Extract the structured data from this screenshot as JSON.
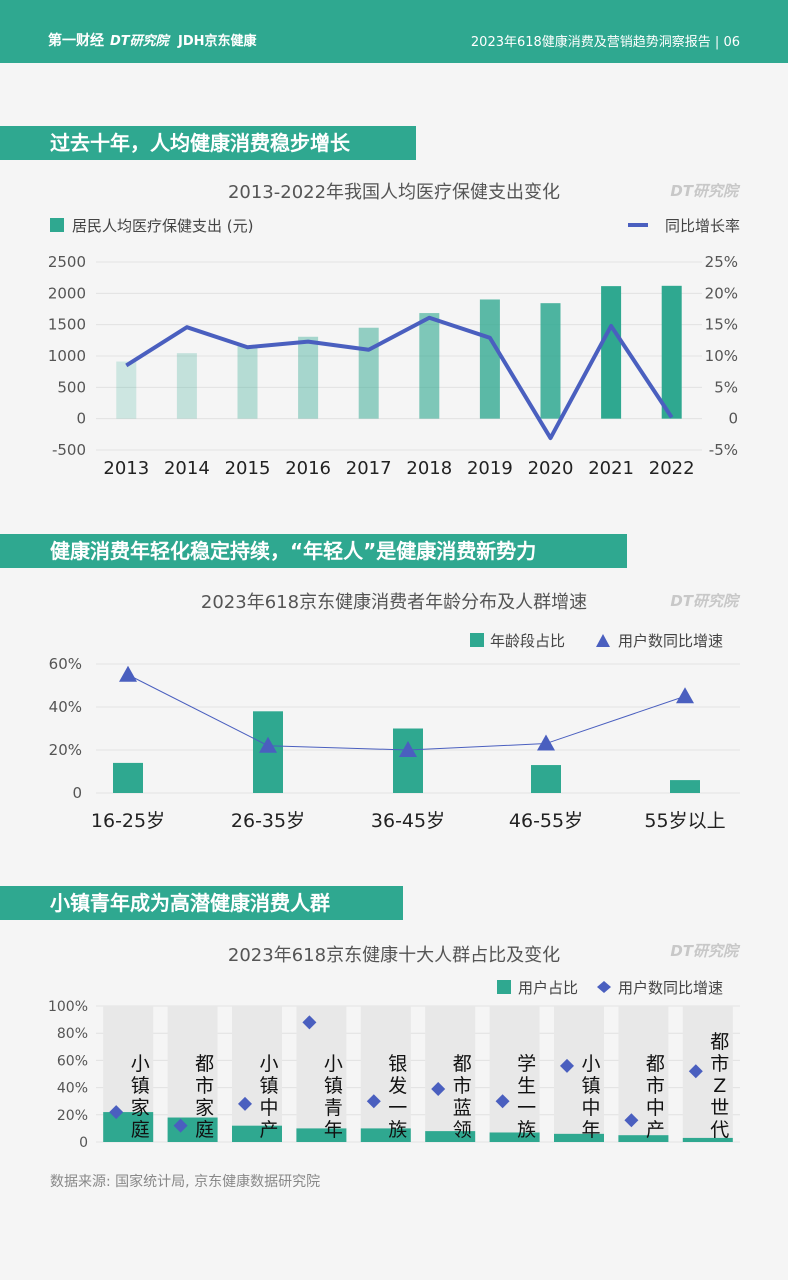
{
  "header": {
    "logos": [
      "第一财经",
      "DT研究院",
      "JDH京东健康"
    ],
    "report_title": "2023年618健康消费及营销趋势洞察报告 | 06"
  },
  "sections": [
    {
      "banner": "过去十年，人均健康消费稳步增长"
    },
    {
      "banner": "健康消费年轻化稳定持续，“年轻人”是健康消费新势力"
    },
    {
      "banner": "小镇青年成为高潜健康消费人群"
    }
  ],
  "watermark": "DT研究院",
  "source": "数据来源: 国家统计局, 京东健康数据研究院",
  "colors": {
    "teal": "#2fa890",
    "line": "#4a5fbf",
    "diamond": "#4a5fbf"
  },
  "chart_data": [
    {
      "type": "bar",
      "title": "2013-2022年我国人均医疗保健支出变化",
      "categories": [
        "2013",
        "2014",
        "2015",
        "2016",
        "2017",
        "2018",
        "2019",
        "2020",
        "2021",
        "2022"
      ],
      "series": [
        {
          "name": "居民人均医疗保健支出 (元)",
          "type": "bar",
          "axis": "left",
          "values": [
            912,
            1045,
            1165,
            1307,
            1451,
            1685,
            1902,
            1843,
            2115,
            2120
          ]
        },
        {
          "name": "同比增长率",
          "type": "line",
          "axis": "right",
          "values": [
            8.5,
            14.6,
            11.4,
            12.3,
            11.0,
            16.1,
            12.9,
            -3.1,
            14.8,
            0.2
          ]
        }
      ],
      "ylim_left": [
        -500,
        2500
      ],
      "yticks_left": [
        "2500",
        "2000",
        "1500",
        "1000",
        "500",
        "0",
        "-500"
      ],
      "ylim_right": [
        -5,
        25
      ],
      "yticks_right": [
        "25%",
        "20%",
        "15%",
        "10%",
        "5%",
        "0",
        "-5%"
      ],
      "legend": "top"
    },
    {
      "type": "bar",
      "title": "2023年618京东健康消费者年龄分布及人群增速",
      "categories": [
        "16-25岁",
        "26-35岁",
        "36-45岁",
        "46-55岁",
        "55岁以上"
      ],
      "series": [
        {
          "name": "年龄段占比",
          "type": "bar",
          "values": [
            14,
            38,
            30,
            13,
            6
          ]
        },
        {
          "name": "用户数同比增速",
          "type": "line-marker",
          "marker": "triangle",
          "values": [
            55,
            22,
            20,
            23,
            45
          ]
        }
      ],
      "ylim": [
        0,
        60
      ],
      "yticks": [
        "60%",
        "40%",
        "20%",
        "0"
      ],
      "legend": "top-right"
    },
    {
      "type": "bar",
      "title": "2023年618京东健康十大人群占比及变化",
      "categories": [
        "小镇家庭",
        "都市家庭",
        "小镇中产",
        "小镇青年",
        "银发一族",
        "都市蓝领",
        "学生一族",
        "小镇中年",
        "都市中产",
        "都市Z世代"
      ],
      "series": [
        {
          "name": "用户占比",
          "type": "bar",
          "values": [
            22,
            18,
            12,
            10,
            10,
            8,
            7,
            6,
            5,
            3
          ]
        },
        {
          "name": "用户数同比增速",
          "type": "scatter",
          "marker": "diamond",
          "values": [
            22,
            12,
            28,
            88,
            30,
            39,
            30,
            56,
            16,
            52
          ]
        }
      ],
      "ylim": [
        0,
        100
      ],
      "yticks": [
        "100%",
        "80%",
        "60%",
        "40%",
        "20%",
        "0"
      ],
      "legend": "top-right"
    }
  ]
}
